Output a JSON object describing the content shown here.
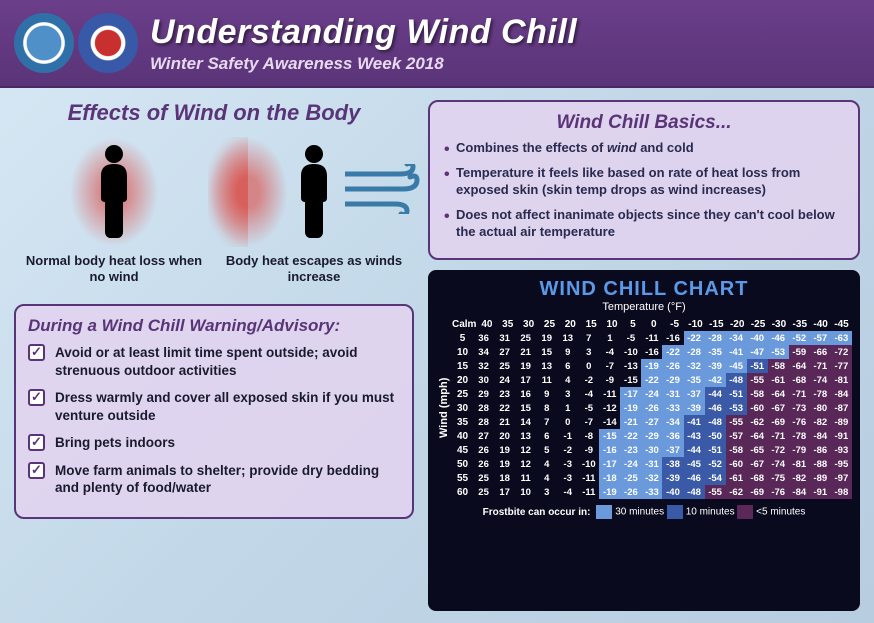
{
  "header": {
    "title": "Understanding Wind Chill",
    "subtitle": "Winter Safety Awareness Week 2018"
  },
  "effects": {
    "title": "Effects of Wind on the Body",
    "left_caption": "Normal body heat loss when no wind",
    "right_caption": "Body heat escapes as winds increase"
  },
  "advisory": {
    "title": "During a Wind Chill Warning/Advisory:",
    "items": [
      "Avoid or at least limit time spent outside; avoid strenuous outdoor activities",
      "Dress warmly and cover all exposed skin if you must venture outside",
      "Bring pets indoors",
      "Move farm animals to shelter; provide dry bedding and plenty of food/water"
    ]
  },
  "basics": {
    "title": "Wind Chill Basics...",
    "items": [
      "Combines the effects of <em>wind</em> and cold",
      "Temperature it feels like based on rate of heat loss from exposed skin (skin temp drops as wind increases)",
      "Does not affect inanimate objects since they can't cool below the actual air temperature"
    ]
  },
  "chart": {
    "title": "WIND CHILL CHART",
    "x_label": "Temperature (°F)",
    "y_label": "Wind (mph)",
    "calm_label": "Calm",
    "temps": [
      40,
      35,
      30,
      25,
      20,
      15,
      10,
      5,
      0,
      -5,
      -10,
      -15,
      -20,
      -25,
      -30,
      -35,
      -40,
      -45
    ],
    "winds": [
      5,
      10,
      15,
      20,
      25,
      30,
      35,
      40,
      45,
      50,
      55,
      60
    ],
    "data": [
      [
        36,
        31,
        25,
        19,
        13,
        7,
        1,
        -5,
        -11,
        -16,
        -22,
        -28,
        -34,
        -40,
        -46,
        -52,
        -57,
        -63
      ],
      [
        34,
        27,
        21,
        15,
        9,
        3,
        -4,
        -10,
        -16,
        -22,
        -28,
        -35,
        -41,
        -47,
        -53,
        -59,
        -66,
        -72
      ],
      [
        32,
        25,
        19,
        13,
        6,
        0,
        -7,
        -13,
        -19,
        -26,
        -32,
        -39,
        -45,
        -51,
        -58,
        -64,
        -71,
        -77
      ],
      [
        30,
        24,
        17,
        11,
        4,
        -2,
        -9,
        -15,
        -22,
        -29,
        -35,
        -42,
        -48,
        -55,
        -61,
        -68,
        -74,
        -81
      ],
      [
        29,
        23,
        16,
        9,
        3,
        -4,
        -11,
        -17,
        -24,
        -31,
        -37,
        -44,
        -51,
        -58,
        -64,
        -71,
        -78,
        -84
      ],
      [
        28,
        22,
        15,
        8,
        1,
        -5,
        -12,
        -19,
        -26,
        -33,
        -39,
        -46,
        -53,
        -60,
        -67,
        -73,
        -80,
        -87
      ],
      [
        28,
        21,
        14,
        7,
        0,
        -7,
        -14,
        -21,
        -27,
        -34,
        -41,
        -48,
        -55,
        -62,
        -69,
        -76,
        -82,
        -89
      ],
      [
        27,
        20,
        13,
        6,
        -1,
        -8,
        -15,
        -22,
        -29,
        -36,
        -43,
        -50,
        -57,
        -64,
        -71,
        -78,
        -84,
        -91
      ],
      [
        26,
        19,
        12,
        5,
        -2,
        -9,
        -16,
        -23,
        -30,
        -37,
        -44,
        -51,
        -58,
        -65,
        -72,
        -79,
        -86,
        -93
      ],
      [
        26,
        19,
        12,
        4,
        -3,
        -10,
        -17,
        -24,
        -31,
        -38,
        -45,
        -52,
        -60,
        -67,
        -74,
        -81,
        -88,
        -95
      ],
      [
        25,
        18,
        11,
        4,
        -3,
        -11,
        -18,
        -25,
        -32,
        -39,
        -46,
        -54,
        -61,
        -68,
        -75,
        -82,
        -89,
        -97
      ],
      [
        25,
        17,
        10,
        3,
        -4,
        -11,
        -19,
        -26,
        -33,
        -40,
        -48,
        -55,
        -62,
        -69,
        -76,
        -84,
        -91,
        -98
      ]
    ],
    "zones": [
      [
        0,
        0,
        0,
        0,
        0,
        0,
        0,
        0,
        0,
        0,
        1,
        1,
        1,
        1,
        1,
        1,
        1,
        1
      ],
      [
        0,
        0,
        0,
        0,
        0,
        0,
        0,
        0,
        0,
        1,
        1,
        1,
        1,
        1,
        1,
        2,
        2,
        2
      ],
      [
        0,
        0,
        0,
        0,
        0,
        0,
        0,
        0,
        1,
        1,
        1,
        1,
        1,
        2,
        2,
        2,
        2,
        2
      ],
      [
        0,
        0,
        0,
        0,
        0,
        0,
        0,
        0,
        1,
        1,
        1,
        1,
        2,
        2,
        2,
        2,
        2,
        2
      ],
      [
        0,
        0,
        0,
        0,
        0,
        0,
        0,
        1,
        1,
        1,
        1,
        2,
        2,
        2,
        2,
        2,
        2,
        2
      ],
      [
        0,
        0,
        0,
        0,
        0,
        0,
        0,
        1,
        1,
        1,
        1,
        2,
        2,
        2,
        2,
        2,
        2,
        2
      ],
      [
        0,
        0,
        0,
        0,
        0,
        0,
        0,
        1,
        1,
        1,
        2,
        2,
        2,
        2,
        2,
        2,
        2,
        2
      ],
      [
        0,
        0,
        0,
        0,
        0,
        0,
        1,
        1,
        1,
        1,
        2,
        2,
        2,
        2,
        2,
        2,
        2,
        2
      ],
      [
        0,
        0,
        0,
        0,
        0,
        0,
        1,
        1,
        1,
        1,
        2,
        2,
        2,
        2,
        2,
        2,
        2,
        2
      ],
      [
        0,
        0,
        0,
        0,
        0,
        0,
        1,
        1,
        1,
        2,
        2,
        2,
        2,
        2,
        2,
        2,
        2,
        2
      ],
      [
        0,
        0,
        0,
        0,
        0,
        0,
        1,
        1,
        1,
        2,
        2,
        2,
        2,
        2,
        2,
        2,
        2,
        2
      ],
      [
        0,
        0,
        0,
        0,
        0,
        0,
        1,
        1,
        1,
        2,
        2,
        2,
        2,
        2,
        2,
        2,
        2,
        2
      ]
    ],
    "legend": {
      "prefix": "Frostbite can occur in:",
      "items": [
        {
          "label": "30 minutes",
          "color": "#6a9adb"
        },
        {
          "label": "10 minutes",
          "color": "#3a5aa8"
        },
        {
          "label": "<5 minutes",
          "color": "#5a2858"
        }
      ]
    }
  },
  "colors": {
    "purple": "#5a3478",
    "panel_bg": "rgba(230,210,240,0.78)"
  }
}
